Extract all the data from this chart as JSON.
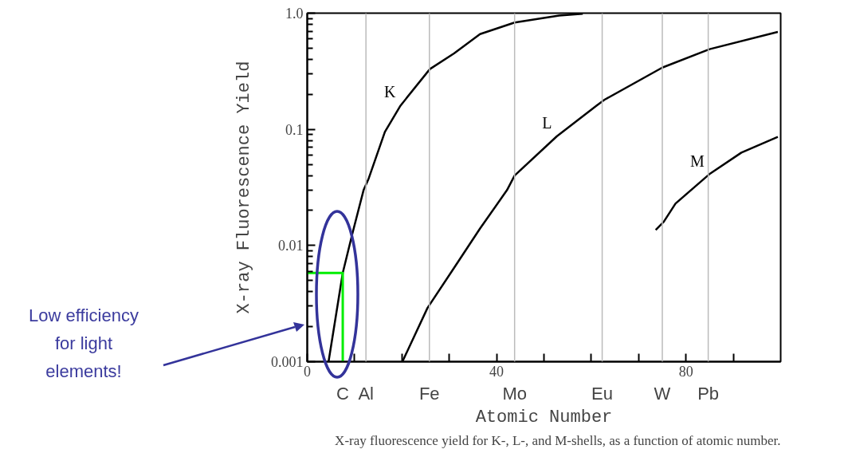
{
  "chart_data": {
    "type": "line",
    "xlabel": "Atomic Number",
    "ylabel": "X-ray Fluorescence Yield",
    "log": "y",
    "grid": false,
    "xlim": [
      0,
      100
    ],
    "ylim": [
      0.001,
      1.0
    ],
    "xticks": [
      0,
      {
        "value": 10,
        "label": null
      },
      {
        "value": 20,
        "label": null
      },
      {
        "value": 30,
        "label": null
      },
      40,
      {
        "value": 50,
        "label": null
      },
      {
        "value": 60,
        "label": null
      },
      {
        "value": 70,
        "label": null
      },
      80,
      {
        "value": 90,
        "label": null
      }
    ],
    "yticks": [
      0.001,
      0.01,
      0.1,
      {
        "value": 1.0,
        "label": "1.0"
      }
    ],
    "series": [
      {
        "name": "K",
        "color": "#000000",
        "x": [
          4.5,
          7.5,
          9.5,
          11.9,
          12.9,
          16.4,
          19.7,
          25.9,
          31,
          36.5,
          43.8,
          53.2,
          58.2
        ],
        "values": [
          0.001,
          0.0058,
          0.0125,
          0.03,
          0.037,
          0.095,
          0.16,
          0.33,
          0.45,
          0.66,
          0.83,
          0.955,
          0.99
        ]
      },
      {
        "name": "L",
        "color": "#000000",
        "x": [
          20.1,
          25.4,
          31,
          36.5,
          42.2,
          43.8,
          52.7,
          61.1,
          62.8,
          75,
          85,
          99.4
        ],
        "values": [
          0.001,
          0.0029,
          0.0064,
          0.014,
          0.03,
          0.04,
          0.087,
          0.16,
          0.18,
          0.34,
          0.49,
          0.69
        ]
      },
      {
        "name": "M",
        "color": "#000000",
        "x": [
          73.6,
          75.3,
          77.8,
          84.9,
          91.7,
          99.4
        ],
        "values": [
          0.0136,
          0.016,
          0.023,
          0.041,
          0.063,
          0.086
        ]
      },
      {
        "color": "#00ee00",
        "x": [
          0,
          7.5,
          7.5
        ],
        "values": [
          0.0058,
          0.0058,
          0.001
        ]
      }
    ],
    "ref_lines": [
      {
        "axis": "x",
        "value": 12.4,
        "label": "Al",
        "color": "#bbbbbb"
      },
      {
        "axis": "x",
        "value": 25.8,
        "label": "Fe",
        "color": "#bbbbbb"
      },
      {
        "axis": "x",
        "value": 43.8,
        "label": "Mo",
        "color": "#bbbbbb"
      },
      {
        "axis": "x",
        "value": 62.3,
        "label": "Eu",
        "color": "#bbbbbb"
      },
      {
        "axis": "x",
        "value": 75,
        "label": "W",
        "color": "#bbbbbb"
      },
      {
        "axis": "x",
        "value": 84.7,
        "label": "Pb",
        "color": "#bbbbbb"
      }
    ],
    "annotations": [
      "Low efficiency\nfor light\nelements!",
      "X-ray fluorescence yield for K-, L-, and M-shells, as a function of atomic number.",
      {
        "text": "C",
        "x": 7.5,
        "y": 0.001
      }
    ]
  }
}
